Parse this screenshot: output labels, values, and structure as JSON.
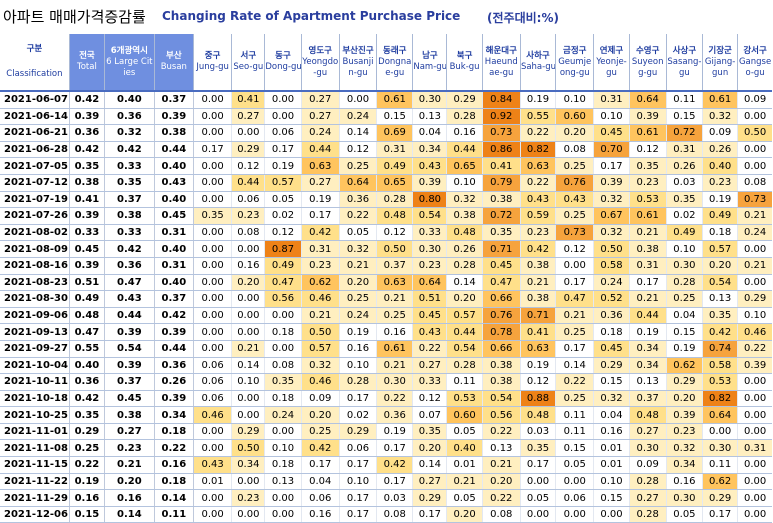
{
  "title": {
    "korean": "아파트 매매가격증감률",
    "english": "Changing Rate of Apartment Purchase Price",
    "unit": "(전주대비:%)"
  },
  "header": {
    "classification_ko": "구분",
    "classification_en": "Classification",
    "columns": [
      {
        "ko": "전국",
        "en": "Total"
      },
      {
        "ko": "6개광역시",
        "en": "6 Large Cities"
      },
      {
        "ko": "부산",
        "en": "Busan"
      },
      {
        "ko": "중구",
        "en": "Jung-gu"
      },
      {
        "ko": "서구",
        "en": "Seo-gu"
      },
      {
        "ko": "동구",
        "en": "Dong-gu"
      },
      {
        "ko": "영도구",
        "en": "Yeongdo-gu"
      },
      {
        "ko": "부산진구",
        "en": "Busanjin-gu"
      },
      {
        "ko": "동래구",
        "en": "Dongnae-gu"
      },
      {
        "ko": "남구",
        "en": "Nam-gu"
      },
      {
        "ko": "북구",
        "en": "Buk-gu"
      },
      {
        "ko": "해운대구",
        "en": "Haeundae-gu"
      },
      {
        "ko": "사하구",
        "en": "Saha-gu"
      },
      {
        "ko": "금정구",
        "en": "Geumjeong-gu"
      },
      {
        "ko": "연제구",
        "en": "Yeonje-gu"
      },
      {
        "ko": "수영구",
        "en": "Suyeong-gu"
      },
      {
        "ko": "사상구",
        "en": "Sasang-gu"
      },
      {
        "ko": "기장군",
        "en": "Gijang-gun"
      },
      {
        "ko": "강서구",
        "en": "Gangseo-gu"
      }
    ]
  },
  "rows": [
    {
      "date": "2021-06-07",
      "values": [
        "0.42",
        "0.40",
        "0.37",
        "0.00",
        "0.41",
        "0.00",
        "0.27",
        "0.00",
        "0.61",
        "0.30",
        "0.29",
        "0.84",
        "0.19",
        "0.10",
        "0.31",
        "0.64",
        "0.11",
        "0.61",
        "0.09"
      ]
    },
    {
      "date": "2021-06-14",
      "values": [
        "0.39",
        "0.36",
        "0.39",
        "0.00",
        "0.27",
        "0.00",
        "0.27",
        "0.24",
        "0.15",
        "0.13",
        "0.28",
        "0.92",
        "0.55",
        "0.60",
        "0.10",
        "0.39",
        "0.15",
        "0.32",
        "0.00"
      ]
    },
    {
      "date": "2021-06-21",
      "values": [
        "0.36",
        "0.32",
        "0.38",
        "0.00",
        "0.00",
        "0.06",
        "0.24",
        "0.14",
        "0.69",
        "0.04",
        "0.16",
        "0.73",
        "0.22",
        "0.20",
        "0.45",
        "0.61",
        "0.72",
        "0.09",
        "0.50"
      ]
    },
    {
      "date": "2021-06-28",
      "values": [
        "0.42",
        "0.42",
        "0.44",
        "0.17",
        "0.29",
        "0.17",
        "0.44",
        "0.12",
        "0.31",
        "0.34",
        "0.44",
        "0.86",
        "0.82",
        "0.08",
        "0.70",
        "0.12",
        "0.31",
        "0.26",
        "0.00"
      ]
    },
    {
      "date": "2021-07-05",
      "values": [
        "0.35",
        "0.33",
        "0.40",
        "0.00",
        "0.12",
        "0.19",
        "0.63",
        "0.25",
        "0.49",
        "0.43",
        "0.65",
        "0.41",
        "0.63",
        "0.25",
        "0.17",
        "0.35",
        "0.26",
        "0.40",
        "0.00"
      ]
    },
    {
      "date": "2021-07-12",
      "values": [
        "0.38",
        "0.35",
        "0.43",
        "0.00",
        "0.44",
        "0.57",
        "0.27",
        "0.64",
        "0.65",
        "0.39",
        "0.10",
        "0.79",
        "0.22",
        "0.76",
        "0.39",
        "0.23",
        "0.03",
        "0.23",
        "0.08"
      ]
    },
    {
      "date": "2021-07-19",
      "values": [
        "0.41",
        "0.37",
        "0.40",
        "0.00",
        "0.06",
        "0.05",
        "0.19",
        "0.36",
        "0.28",
        "0.80",
        "0.32",
        "0.38",
        "0.43",
        "0.43",
        "0.32",
        "0.53",
        "0.35",
        "0.19",
        "0.73"
      ]
    },
    {
      "date": "2021-07-26",
      "values": [
        "0.39",
        "0.38",
        "0.45",
        "0.35",
        "0.23",
        "0.02",
        "0.17",
        "0.22",
        "0.48",
        "0.54",
        "0.38",
        "0.72",
        "0.59",
        "0.25",
        "0.67",
        "0.61",
        "0.02",
        "0.49",
        "0.21"
      ]
    },
    {
      "date": "2021-08-02",
      "values": [
        "0.33",
        "0.33",
        "0.31",
        "0.00",
        "0.08",
        "0.12",
        "0.42",
        "0.05",
        "0.12",
        "0.33",
        "0.48",
        "0.35",
        "0.23",
        "0.73",
        "0.32",
        "0.21",
        "0.49",
        "0.18",
        "0.24"
      ]
    },
    {
      "date": "2021-08-09",
      "values": [
        "0.45",
        "0.42",
        "0.40",
        "0.00",
        "0.00",
        "0.87",
        "0.31",
        "0.32",
        "0.50",
        "0.30",
        "0.26",
        "0.71",
        "0.42",
        "0.12",
        "0.50",
        "0.38",
        "0.10",
        "0.57",
        "0.00"
      ]
    },
    {
      "date": "2021-08-16",
      "values": [
        "0.39",
        "0.36",
        "0.31",
        "0.00",
        "0.16",
        "0.49",
        "0.23",
        "0.21",
        "0.37",
        "0.23",
        "0.28",
        "0.45",
        "0.38",
        "0.00",
        "0.58",
        "0.31",
        "0.30",
        "0.20",
        "0.21"
      ]
    },
    {
      "date": "2021-08-23",
      "values": [
        "0.51",
        "0.47",
        "0.40",
        "0.00",
        "0.20",
        "0.47",
        "0.62",
        "0.20",
        "0.63",
        "0.64",
        "0.14",
        "0.47",
        "0.21",
        "0.17",
        "0.24",
        "0.17",
        "0.28",
        "0.54",
        "0.00"
      ]
    },
    {
      "date": "2021-08-30",
      "values": [
        "0.49",
        "0.43",
        "0.37",
        "0.00",
        "0.00",
        "0.56",
        "0.46",
        "0.25",
        "0.21",
        "0.51",
        "0.20",
        "0.66",
        "0.38",
        "0.47",
        "0.52",
        "0.21",
        "0.25",
        "0.13",
        "0.29"
      ]
    },
    {
      "date": "2021-09-06",
      "values": [
        "0.48",
        "0.44",
        "0.42",
        "0.00",
        "0.00",
        "0.00",
        "0.21",
        "0.24",
        "0.25",
        "0.45",
        "0.57",
        "0.76",
        "0.71",
        "0.21",
        "0.36",
        "0.44",
        "0.04",
        "0.35",
        "0.10"
      ]
    },
    {
      "date": "2021-09-13",
      "values": [
        "0.47",
        "0.39",
        "0.39",
        "0.00",
        "0.00",
        "0.18",
        "0.50",
        "0.19",
        "0.16",
        "0.43",
        "0.44",
        "0.78",
        "0.41",
        "0.25",
        "0.18",
        "0.19",
        "0.15",
        "0.42",
        "0.46"
      ]
    },
    {
      "date": "2021-09-27",
      "values": [
        "0.55",
        "0.54",
        "0.44",
        "0.00",
        "0.21",
        "0.00",
        "0.57",
        "0.16",
        "0.61",
        "0.22",
        "0.54",
        "0.66",
        "0.63",
        "0.17",
        "0.45",
        "0.34",
        "0.19",
        "0.74",
        "0.22"
      ]
    },
    {
      "date": "2021-10-04",
      "values": [
        "0.40",
        "0.39",
        "0.36",
        "0.06",
        "0.14",
        "0.08",
        "0.32",
        "0.10",
        "0.21",
        "0.27",
        "0.28",
        "0.38",
        "0.19",
        "0.14",
        "0.29",
        "0.34",
        "0.62",
        "0.58",
        "0.39"
      ]
    },
    {
      "date": "2021-10-11",
      "values": [
        "0.36",
        "0.37",
        "0.26",
        "0.06",
        "0.10",
        "0.35",
        "0.46",
        "0.28",
        "0.30",
        "0.33",
        "0.11",
        "0.38",
        "0.12",
        "0.22",
        "0.15",
        "0.13",
        "0.29",
        "0.53",
        "0.00"
      ]
    },
    {
      "date": "2021-10-18",
      "values": [
        "0.42",
        "0.45",
        "0.39",
        "0.06",
        "0.00",
        "0.18",
        "0.09",
        "0.17",
        "0.22",
        "0.12",
        "0.53",
        "0.54",
        "0.88",
        "0.25",
        "0.32",
        "0.37",
        "0.20",
        "0.82",
        "0.00"
      ]
    },
    {
      "date": "2021-10-25",
      "values": [
        "0.35",
        "0.38",
        "0.34",
        "0.46",
        "0.00",
        "0.24",
        "0.20",
        "0.02",
        "0.36",
        "0.07",
        "0.60",
        "0.56",
        "0.48",
        "0.11",
        "0.04",
        "0.48",
        "0.39",
        "0.64",
        "0.00"
      ]
    },
    {
      "date": "2021-11-01",
      "values": [
        "0.29",
        "0.27",
        "0.18",
        "0.00",
        "0.29",
        "0.00",
        "0.25",
        "0.29",
        "0.19",
        "0.35",
        "0.05",
        "0.22",
        "0.03",
        "0.11",
        "0.16",
        "0.27",
        "0.23",
        "0.00",
        "0.00"
      ]
    },
    {
      "date": "2021-11-08",
      "values": [
        "0.25",
        "0.23",
        "0.22",
        "0.00",
        "0.50",
        "0.10",
        "0.42",
        "0.06",
        "0.17",
        "0.20",
        "0.40",
        "0.13",
        "0.35",
        "0.15",
        "0.01",
        "0.30",
        "0.32",
        "0.30",
        "0.31"
      ]
    },
    {
      "date": "2021-11-15",
      "values": [
        "0.22",
        "0.21",
        "0.16",
        "0.43",
        "0.34",
        "0.18",
        "0.17",
        "0.17",
        "0.42",
        "0.14",
        "0.01",
        "0.21",
        "0.17",
        "0.05",
        "0.01",
        "0.09",
        "0.34",
        "0.11",
        "0.00"
      ]
    },
    {
      "date": "2021-11-22",
      "values": [
        "0.19",
        "0.20",
        "0.18",
        "0.01",
        "0.00",
        "0.13",
        "0.04",
        "0.10",
        "0.17",
        "0.27",
        "0.21",
        "0.20",
        "0.00",
        "0.00",
        "0.10",
        "0.28",
        "0.16",
        "0.62",
        "0.00"
      ]
    },
    {
      "date": "2021-11-29",
      "values": [
        "0.16",
        "0.16",
        "0.14",
        "0.00",
        "0.23",
        "0.00",
        "0.06",
        "0.17",
        "0.03",
        "0.29",
        "0.05",
        "0.22",
        "0.05",
        "0.06",
        "0.15",
        "0.27",
        "0.30",
        "0.29",
        "0.00"
      ]
    },
    {
      "date": "2021-12-06",
      "values": [
        "0.15",
        "0.14",
        "0.11",
        "0.00",
        "0.00",
        "0.00",
        "0.16",
        "0.17",
        "0.08",
        "0.17",
        "0.20",
        "0.08",
        "0.00",
        "0.00",
        "0.00",
        "0.28",
        "0.05",
        "0.17",
        "0.00"
      ]
    }
  ],
  "colors": {
    "title_blue": "#2a3e9e",
    "header_highlight": "#6f8fe0",
    "scale": [
      "#ffefc0",
      "#ffe08a",
      "#ffc45e",
      "#f6a33d",
      "#ee8217"
    ]
  }
}
